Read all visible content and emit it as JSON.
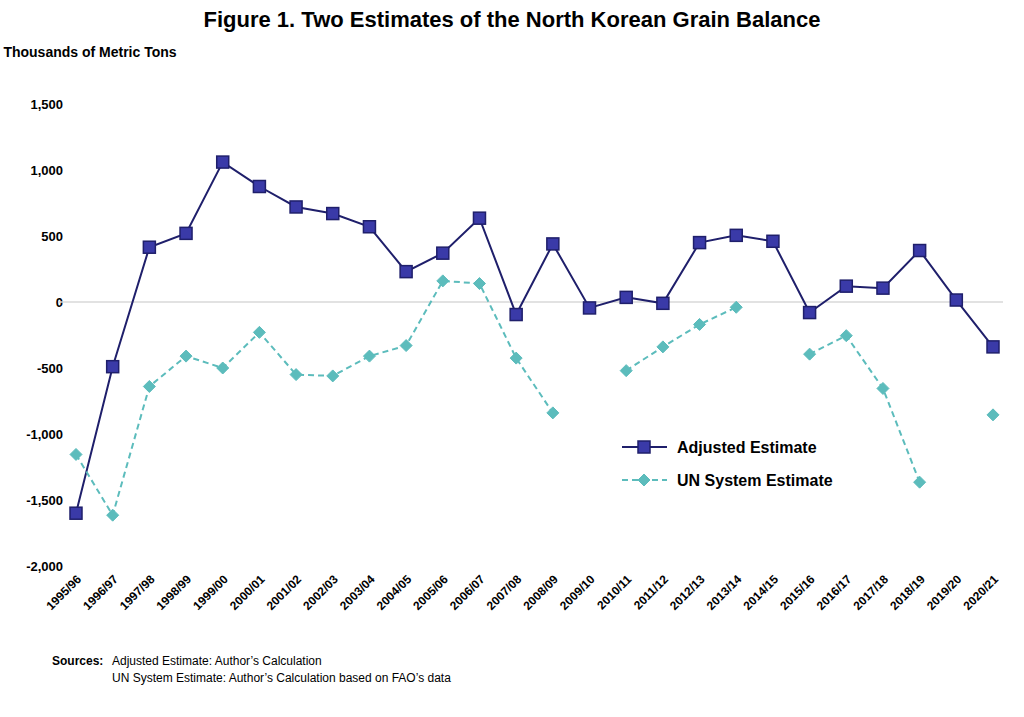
{
  "chart_data": {
    "type": "line",
    "title": "Figure 1. Two Estimates of the North Korean Grain Balance",
    "y_label": "Thousands of Metric Tons",
    "source_label": "Sources:",
    "sources": [
      "Adjusted Estimate: Author’s Calculation",
      "UN System Estimate: Author’s Calculation based on FAO’s data"
    ],
    "categories": [
      "1995/96",
      "1996/97",
      "1997/98",
      "1998/99",
      "1999/00",
      "2000/01",
      "2001/02",
      "2002/03",
      "2003/04",
      "2004/05",
      "2005/06",
      "2006/07",
      "2007/08",
      "2008/09",
      "2009/10",
      "2010/11",
      "2011/12",
      "2012/13",
      "2013/14",
      "2014/15",
      "2015/16",
      "2016/17",
      "2017/18",
      "2018/19",
      "2019/20",
      "2020/21"
    ],
    "series": [
      {
        "name": "Adjusted Estimate",
        "color": "#1f1f6b",
        "marker": "square",
        "line_style": "solid",
        "values": [
          -1600,
          -490,
          415,
          520,
          1060,
          875,
          720,
          670,
          570,
          230,
          370,
          635,
          -95,
          440,
          -45,
          35,
          -10,
          450,
          505,
          460,
          -80,
          120,
          105,
          390,
          15,
          -340
        ]
      },
      {
        "name": "UN System Estimate",
        "color": "#5cbcbc",
        "marker": "diamond",
        "line_style": "dashed",
        "values": [
          -1155,
          -1615,
          -640,
          -410,
          -500,
          -230,
          -550,
          -560,
          -410,
          -330,
          160,
          140,
          -425,
          -840,
          null,
          -520,
          -340,
          -170,
          -40,
          null,
          -395,
          -255,
          -655,
          -1365,
          null,
          -855
        ]
      }
    ],
    "ylim": [
      -2000,
      1500
    ],
    "yticks": [
      {
        "value": -2000,
        "label": "-2,000"
      },
      {
        "value": -1500,
        "label": "-1,500"
      },
      {
        "value": -1000,
        "label": "-1,000"
      },
      -500,
      0,
      500,
      {
        "value": 1000,
        "label": "1,000"
      },
      {
        "value": 1500,
        "label": "1,500"
      }
    ],
    "grid": false,
    "legend": "right"
  }
}
